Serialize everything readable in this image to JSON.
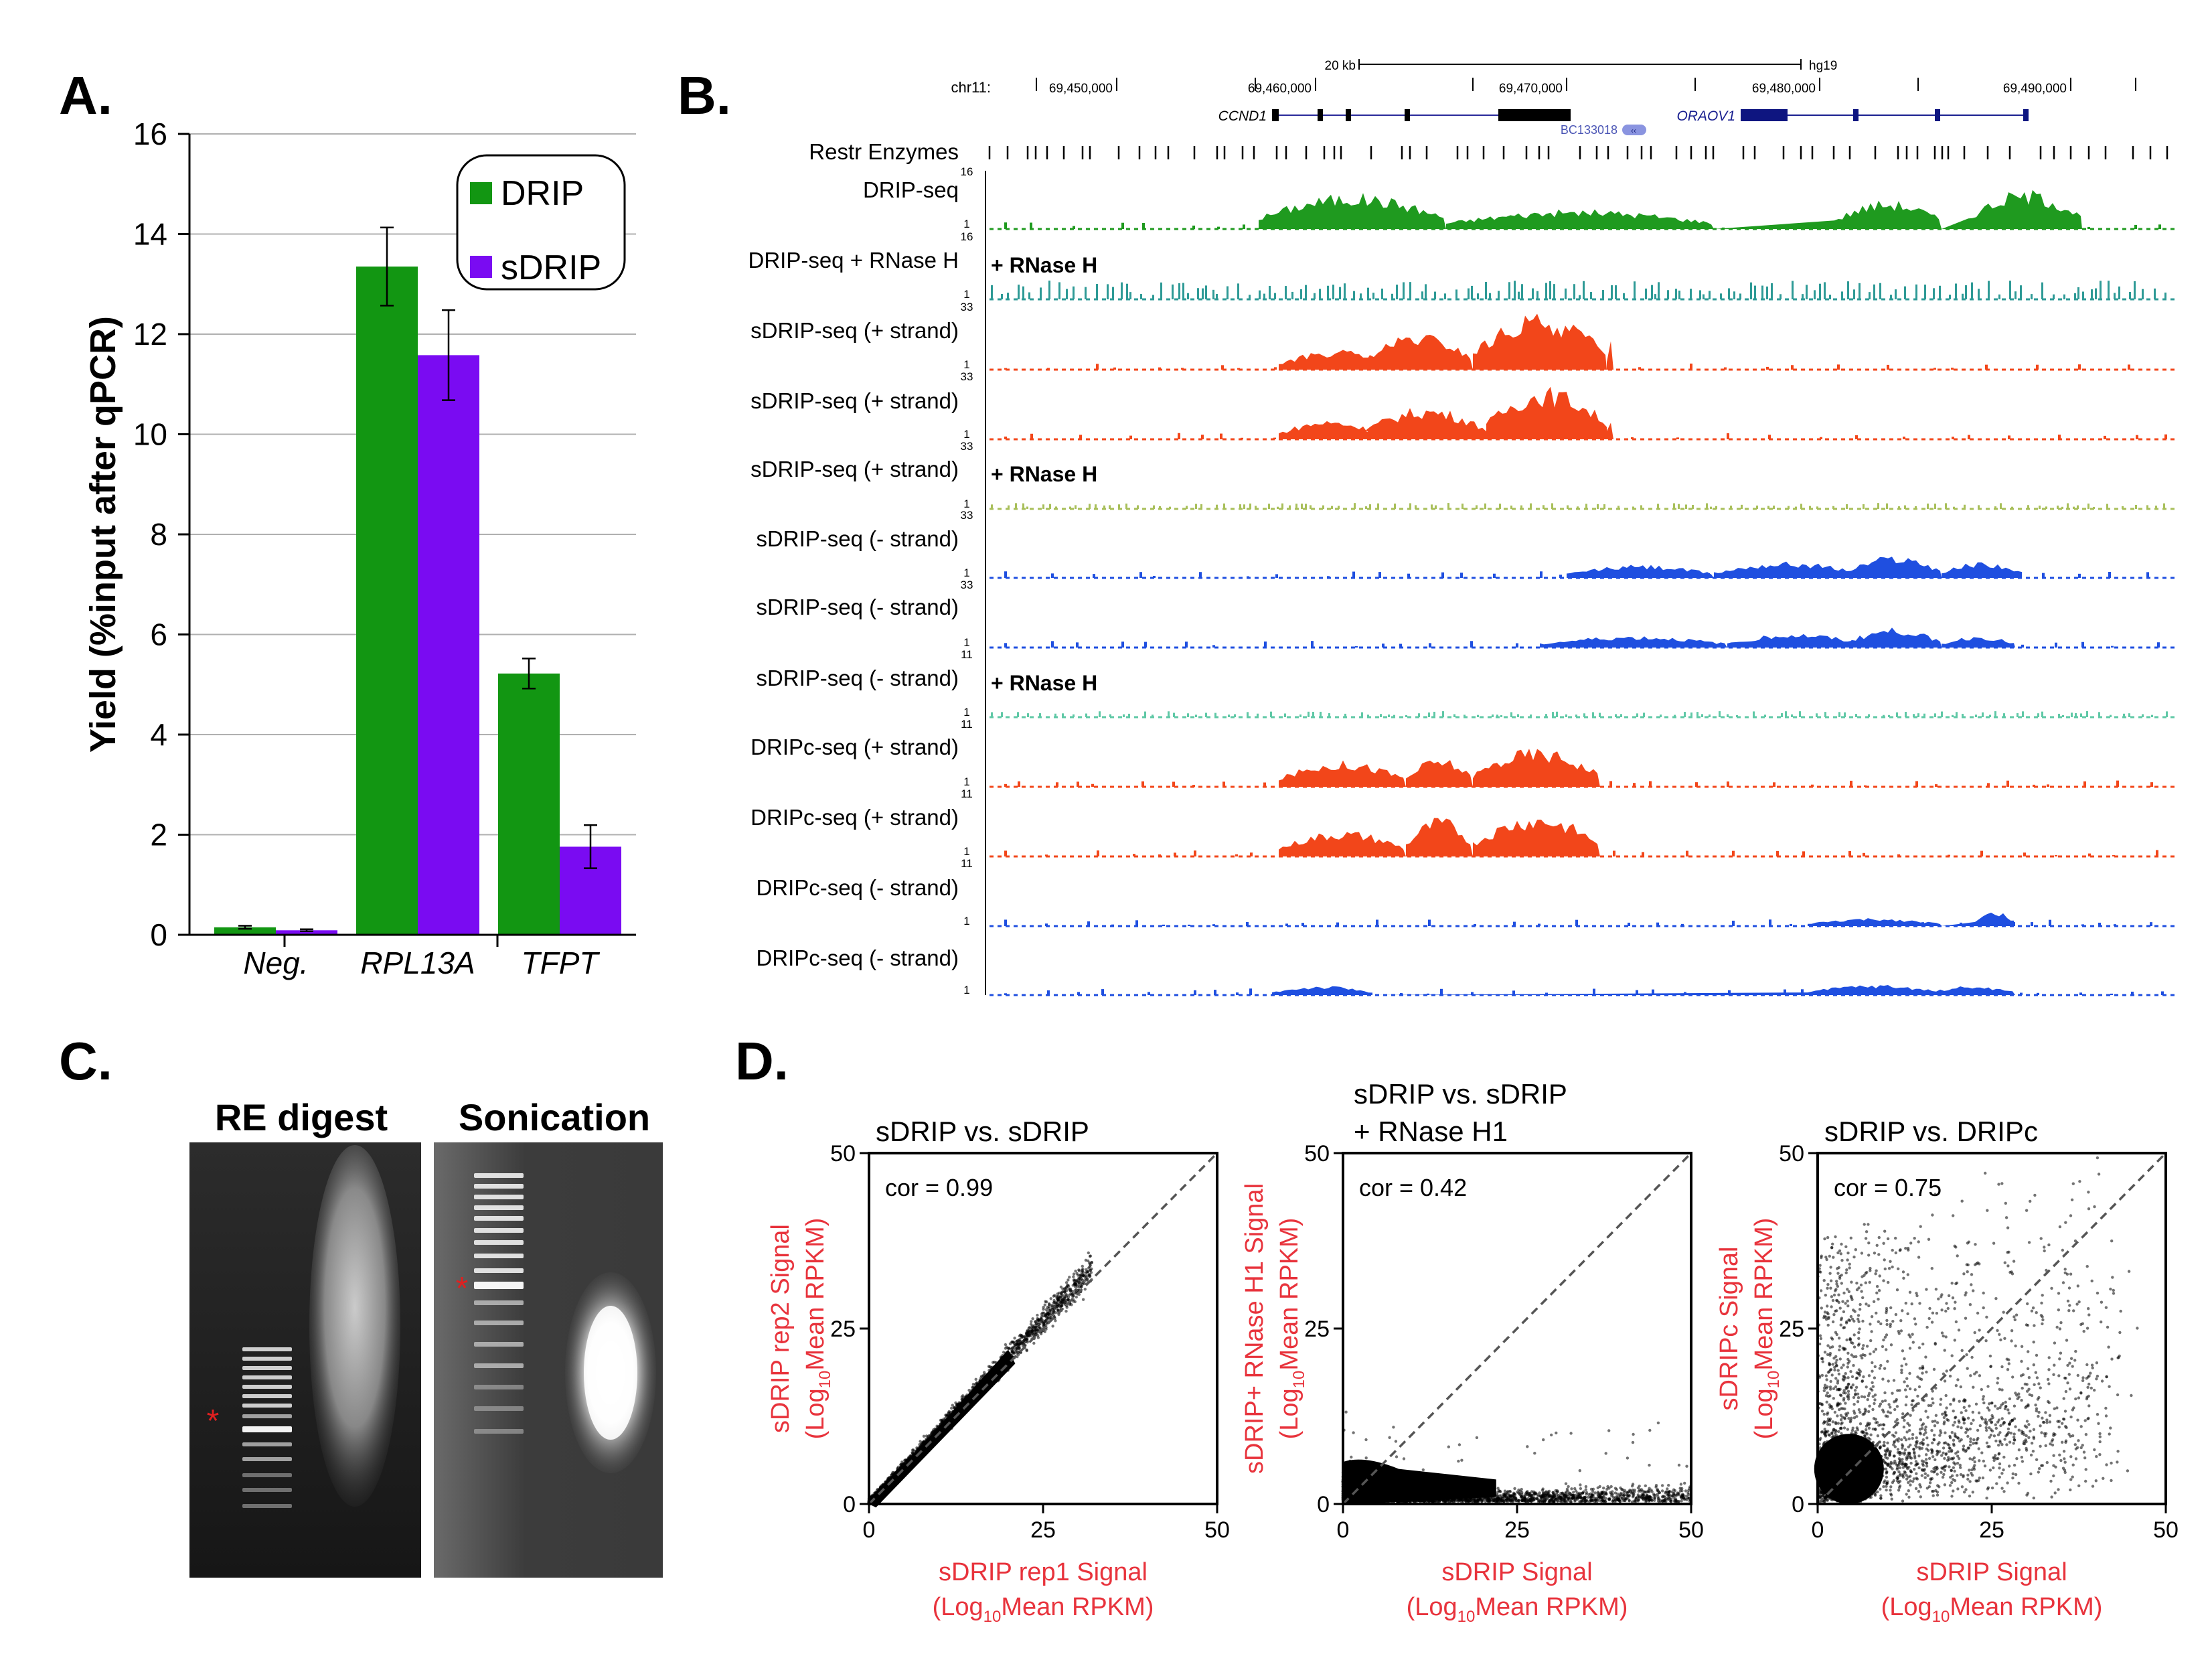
{
  "panels": {
    "a": {
      "letter": "A."
    },
    "b": {
      "letter": "B."
    },
    "c": {
      "letter": "C."
    },
    "d": {
      "letter": "D."
    }
  },
  "chart_data": [
    {
      "type": "bar",
      "panel": "A",
      "title": "",
      "xlabel": "",
      "ylabel": "Yield (%input after qPCR)",
      "categories": [
        "Neg.",
        "RPL13A",
        "TFPT"
      ],
      "series": [
        {
          "name": "DRIP",
          "color": "#129612",
          "values": [
            0.15,
            13.35,
            5.22
          ],
          "errors": [
            0.03,
            0.78,
            0.3
          ]
        },
        {
          "name": "sDRIP",
          "color": "#7a0bf2",
          "values": [
            0.09,
            11.58,
            1.76
          ],
          "errors": [
            0.02,
            0.9,
            0.43
          ]
        }
      ],
      "ylim": [
        0,
        16
      ],
      "yticks": [
        "0",
        "2",
        "4",
        "6",
        "8",
        "10",
        "12",
        "14",
        "16"
      ],
      "grid": true,
      "legend": "top-right"
    },
    {
      "type": "scatter",
      "panel": "D",
      "id": "d1",
      "title": "sDRIP vs. sDRIP",
      "annotation": "cor = 0.99",
      "xlabel": [
        "sDRIP rep1 Signal",
        "(Log10Mean RPKM)"
      ],
      "ylabel": [
        "sDRIP rep2 Signal",
        "(Log10Mean RPKM)"
      ],
      "xlim": [
        0,
        50
      ],
      "ylim": [
        0,
        50
      ],
      "xticks": [
        "0",
        "25",
        "50"
      ],
      "yticks": [
        "0",
        "25",
        "50"
      ],
      "correlation": 0.99
    },
    {
      "type": "scatter",
      "panel": "D",
      "id": "d2",
      "title": [
        "sDRIP vs. sDRIP",
        "+ RNase H1"
      ],
      "annotation": "cor = 0.42",
      "xlabel": [
        "sDRIP Signal",
        "(Log10Mean RPKM)"
      ],
      "ylabel": [
        "sDRIP+ RNase H1 Signal",
        "(Log10Mean RPKM)"
      ],
      "xlim": [
        0,
        50
      ],
      "ylim": [
        0,
        50
      ],
      "xticks": [
        "0",
        "25",
        "50"
      ],
      "yticks": [
        "0",
        "25",
        "50"
      ],
      "correlation": 0.42
    },
    {
      "type": "scatter",
      "panel": "D",
      "id": "d3",
      "title": "sDRIP vs. DRIPc",
      "annotation": "cor = 0.75",
      "xlabel": [
        "sDRIP Signal",
        "(Log10Mean RPKM)"
      ],
      "ylabel": [
        "sDRIPc Signal",
        "(Log10Mean RPKM)"
      ],
      "xlim": [
        0,
        50
      ],
      "ylim": [
        0,
        50
      ],
      "xticks": [
        "0",
        "25",
        "50"
      ],
      "yticks": [
        "0",
        "25",
        "50"
      ],
      "correlation": 0.75
    }
  ],
  "genome_browser": {
    "chrom_label": "chr11:",
    "scale_label": "20 kb",
    "assembly": "hg19",
    "positions": [
      "69,450,000",
      "69,460,000",
      "69,470,000",
      "69,480,000",
      "69,490,000"
    ],
    "genes": [
      {
        "name": "CCND1",
        "color": "#000000"
      },
      {
        "name": "BC133018",
        "color": "#4a55b5"
      },
      {
        "name": "ORAOV1",
        "color": "#1a2090"
      }
    ],
    "restr_label": "Restr Enzymes",
    "tracks": [
      {
        "label": "DRIP-seq",
        "color": "#1f9a1f",
        "scale_max": "16",
        "scale_min": "1",
        "note": ""
      },
      {
        "label": "DRIP-seq + RNase H",
        "color": "#2e9a96",
        "scale_max": "16",
        "scale_min": "1",
        "note": "+ RNase H"
      },
      {
        "label": "sDRIP-seq (+ strand)",
        "color": "#f2461a",
        "scale_max": "33",
        "scale_min": "1",
        "note": ""
      },
      {
        "label": "sDRIP-seq (+ strand)",
        "color": "#f2461a",
        "scale_max": "33",
        "scale_min": "1",
        "note": ""
      },
      {
        "label": "sDRIP-seq (+ strand)",
        "color": "#a8bf5a",
        "scale_max": "33",
        "scale_min": "1",
        "note": "+ RNase H"
      },
      {
        "label": "sDRIP-seq (- strand)",
        "color": "#1f4fe0",
        "scale_max": "33",
        "scale_min": "1",
        "note": ""
      },
      {
        "label": "sDRIP-seq (- strand)",
        "color": "#1f4fe0",
        "scale_max": "33",
        "scale_min": "1",
        "note": ""
      },
      {
        "label": "sDRIP-seq (- strand)",
        "color": "#5fc8a6",
        "scale_max": "11",
        "scale_min": "1",
        "note": "+ RNase H"
      },
      {
        "label": "DRIPc-seq (+ strand)",
        "color": "#f2461a",
        "scale_max": "11",
        "scale_min": "1",
        "note": ""
      },
      {
        "label": "DRIPc-seq (+ strand)",
        "color": "#f2461a",
        "scale_max": "11",
        "scale_min": "1",
        "note": ""
      },
      {
        "label": "DRIPc-seq (- strand)",
        "color": "#1f4fe0",
        "scale_max": "11",
        "scale_min": "1",
        "note": ""
      },
      {
        "label": "DRIPc-seq (- strand)",
        "color": "#1f4fe0",
        "scale_max": "",
        "scale_min": "1",
        "note": ""
      }
    ]
  },
  "gel": {
    "lane1_title": "RE digest",
    "lane2_title": "Sonication",
    "marker": "*"
  }
}
